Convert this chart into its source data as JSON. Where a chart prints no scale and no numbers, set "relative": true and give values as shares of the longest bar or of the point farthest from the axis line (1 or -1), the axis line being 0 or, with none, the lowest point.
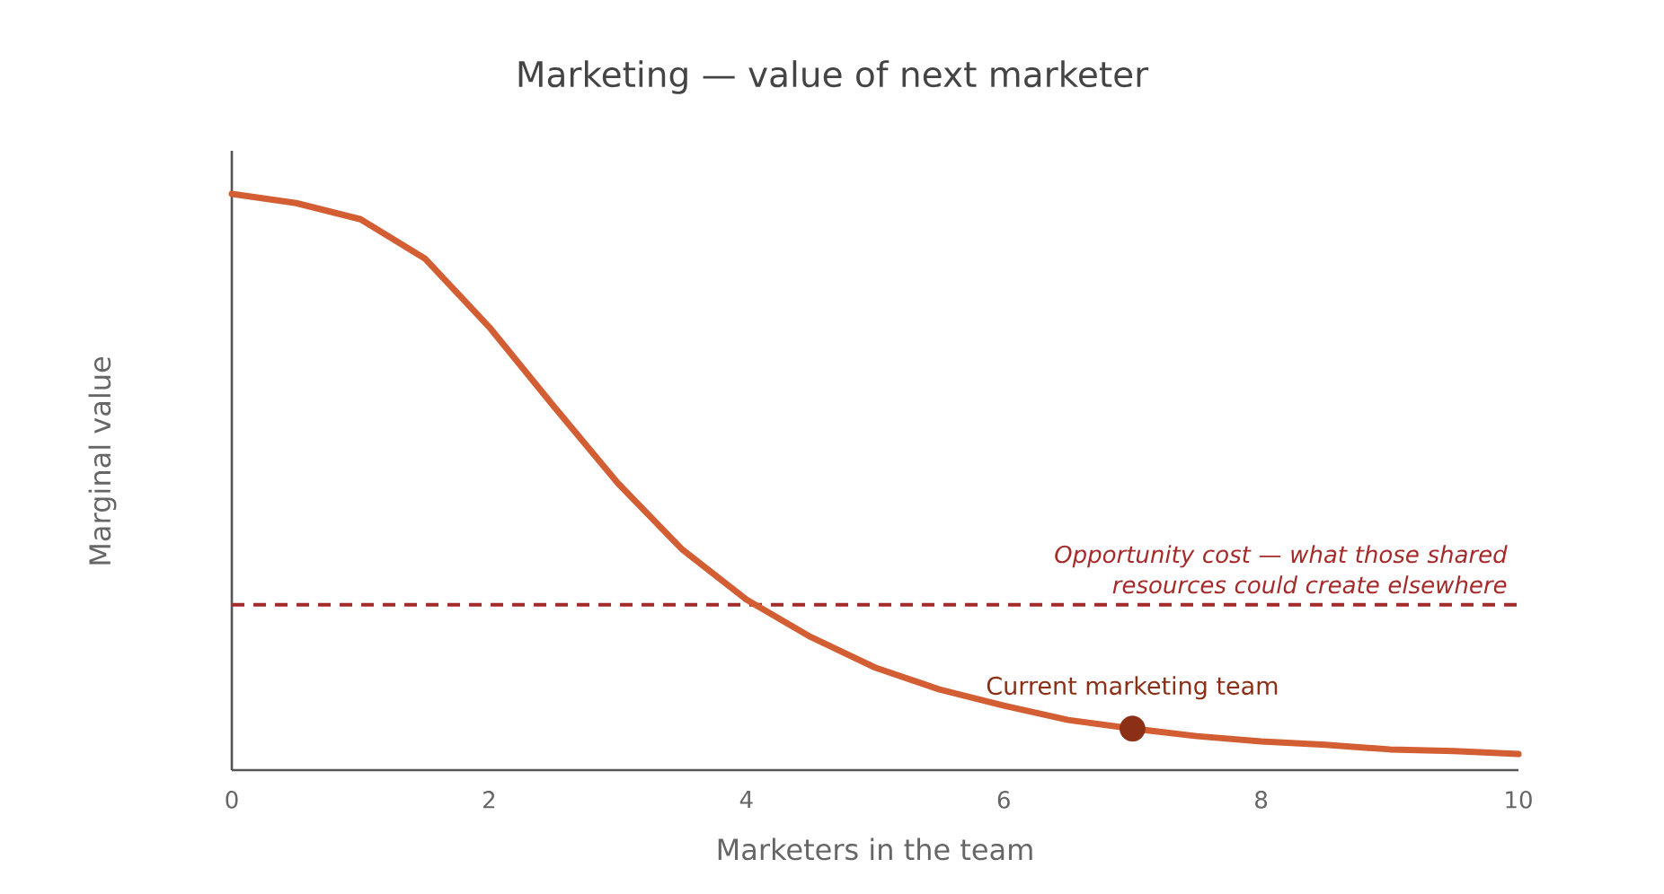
{
  "chart_data": {
    "type": "line",
    "title": "Marketing — value of next marketer",
    "xlabel": "Marketers in the team",
    "ylabel": "Marginal value",
    "relative": true,
    "xlim": [
      0,
      10
    ],
    "xticks": [
      0,
      2,
      4,
      6,
      8,
      10
    ],
    "series": [
      {
        "color": "#d35e33",
        "x": [
          0,
          0.5,
          1,
          1.5,
          2,
          2.5,
          3,
          3.5,
          4,
          4.5,
          5,
          5.5,
          6,
          6.5,
          7,
          7.5,
          8,
          8.5,
          9,
          9.5,
          10
        ],
        "values": [
          1.0,
          0.984,
          0.956,
          0.888,
          0.769,
          0.632,
          0.498,
          0.383,
          0.296,
          0.231,
          0.178,
          0.14,
          0.112,
          0.087,
          0.072,
          0.059,
          0.05,
          0.044,
          0.036,
          0.033,
          0.028
        ]
      },
      {
        "type": "scatter",
        "name": "Current marketing team",
        "color": "#8b2f17",
        "marker": "circle",
        "x": [
          7
        ],
        "values": [
          0.072
        ]
      }
    ],
    "ref_lines": [
      {
        "axis": "y",
        "value": 0.287,
        "label": "Opportunity cost — what those shared resources could create elsewhere",
        "color": "#a52a2a",
        "line_style": "dashed"
      }
    ]
  }
}
